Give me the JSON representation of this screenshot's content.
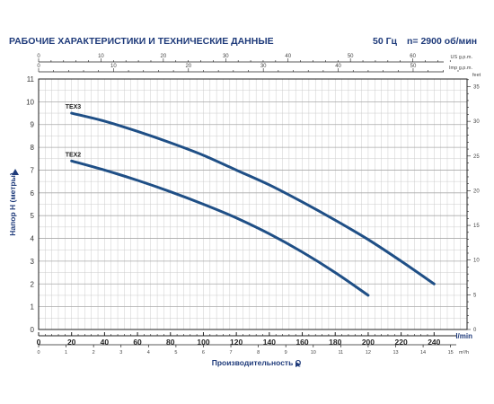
{
  "header": {
    "title": "РАБОЧИЕ ХАРАКТЕРИСТИКИ И ТЕХНИЧЕСКИЕ ДАННЫЕ",
    "frequency": "50 Гц",
    "speed": "n= 2900 об/мин"
  },
  "colors": {
    "curve": "#1f4f86",
    "text": "#1e3a7a",
    "grid": "#cccccc",
    "axis": "#222222"
  },
  "chart_data": {
    "type": "line",
    "title": "",
    "xlabel": "Производительность Q",
    "ylabel": "Напор H (метры)",
    "xlim": [
      0,
      260
    ],
    "ylim": [
      0,
      11
    ],
    "grid": true,
    "x_unit": "l/min",
    "x_ticks": [
      0,
      20,
      40,
      60,
      80,
      100,
      120,
      140,
      160,
      180,
      200,
      220,
      240
    ],
    "y_ticks": [
      0,
      1,
      2,
      3,
      4,
      5,
      6,
      7,
      8,
      9,
      10,
      11
    ],
    "series": [
      {
        "name": "TEX3",
        "x": [
          20,
          40,
          60,
          80,
          100,
          120,
          140,
          160,
          180,
          200,
          220,
          240
        ],
        "y": [
          9.5,
          9.15,
          8.7,
          8.2,
          7.65,
          7.0,
          6.35,
          5.6,
          4.8,
          3.95,
          3.0,
          2.0
        ]
      },
      {
        "name": "TEX2",
        "x": [
          20,
          40,
          60,
          80,
          100,
          120,
          140,
          160,
          180,
          200
        ],
        "y": [
          7.4,
          7.0,
          6.55,
          6.05,
          5.5,
          4.9,
          4.2,
          3.4,
          2.5,
          1.5
        ]
      }
    ],
    "secondary_axes": {
      "top_us_gpm": {
        "unit": "US g.p.m.",
        "max": 68.7,
        "labels": [
          0,
          10,
          20,
          30,
          40,
          50,
          60
        ]
      },
      "top_imp_gpm": {
        "unit": "Imp g.p.m.",
        "max": 57.2,
        "labels": [
          0,
          10,
          20,
          30,
          40,
          50
        ]
      },
      "right_feet": {
        "unit": "feet",
        "max": 36.1,
        "labels": [
          0,
          5,
          10,
          15,
          20,
          25,
          30,
          35
        ]
      },
      "bottom_m3h": {
        "unit": "m³/h",
        "max": 15.6,
        "labels": [
          0,
          5,
          10,
          15
        ]
      }
    }
  }
}
